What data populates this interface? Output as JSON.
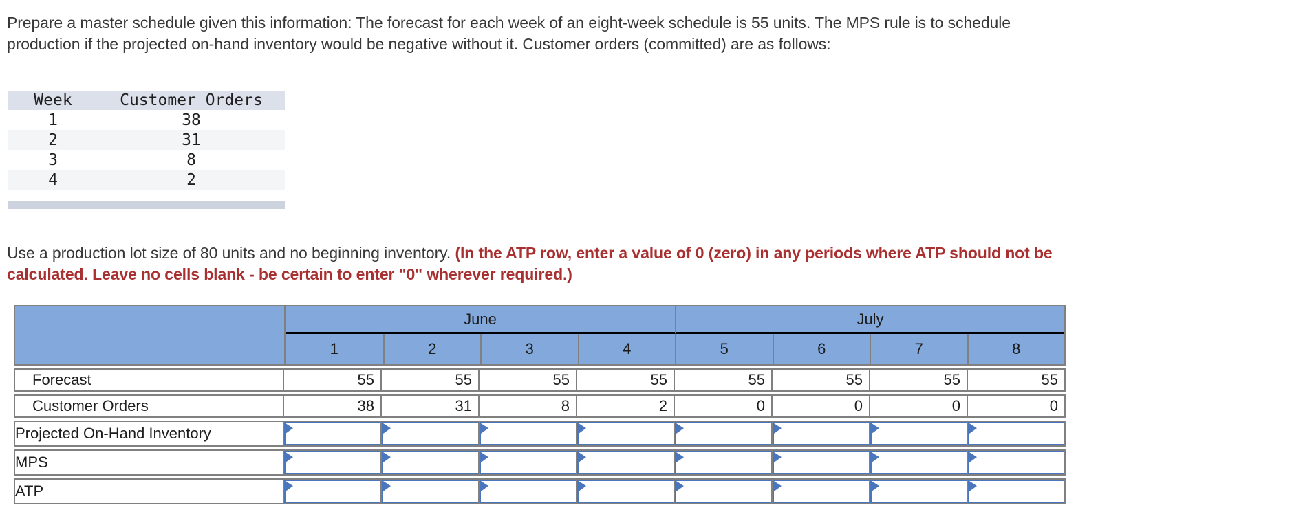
{
  "intro": {
    "text": "Prepare a master schedule given this information: The forecast for each week of an eight-week schedule is 55 units. The MPS rule is to schedule production if the projected on-hand inventory would be negative without it. Customer orders (committed) are as follows:"
  },
  "orders_table": {
    "headers": [
      "Week",
      "Customer Orders"
    ],
    "rows": [
      [
        "1",
        "38"
      ],
      [
        "2",
        "31"
      ],
      [
        "3",
        "8"
      ],
      [
        "4",
        "2"
      ]
    ]
  },
  "instructions": {
    "text_black": "Use a production lot size of 80 units and no beginning inventory. ",
    "text_red": "(In the ATP row, enter a value of 0 (zero) in any periods where ATP should not be calculated. Leave no cells blank - be certain to enter \"0\" wherever required.)"
  },
  "mps_table": {
    "month_groups": [
      {
        "label": "June",
        "weeks": [
          "1",
          "2",
          "3",
          "4"
        ]
      },
      {
        "label": "July",
        "weeks": [
          "5",
          "6",
          "7",
          "8"
        ]
      }
    ],
    "week_headers": [
      "1",
      "2",
      "3",
      "4",
      "5",
      "6",
      "7",
      "8"
    ],
    "rows": [
      {
        "label": "Forecast",
        "type": "static",
        "values": [
          "55",
          "55",
          "55",
          "55",
          "55",
          "55",
          "55",
          "55"
        ]
      },
      {
        "label": "Customer Orders",
        "type": "static",
        "values": [
          "38",
          "31",
          "8",
          "2",
          "0",
          "0",
          "0",
          "0"
        ]
      },
      {
        "label": "Projected On-Hand Inventory",
        "type": "input",
        "values": [
          "",
          "",
          "",
          "",
          "",
          "",
          "",
          ""
        ]
      },
      {
        "label": "MPS",
        "type": "input",
        "values": [
          "",
          "",
          "",
          "",
          "",
          "",
          "",
          ""
        ]
      },
      {
        "label": "ATP",
        "type": "input",
        "values": [
          "",
          "",
          "",
          "",
          "",
          "",
          "",
          ""
        ]
      }
    ]
  },
  "colors": {
    "header_blue": "#82a8dc",
    "input_border_blue": "#4a76bd",
    "instruction_red": "#a93030",
    "grid_gray": "#808080",
    "orders_header_bg": "#dbe0ea",
    "orders_stripe_bg": "#f4f5f7",
    "orders_bottom_bar": "#ccd3de"
  }
}
